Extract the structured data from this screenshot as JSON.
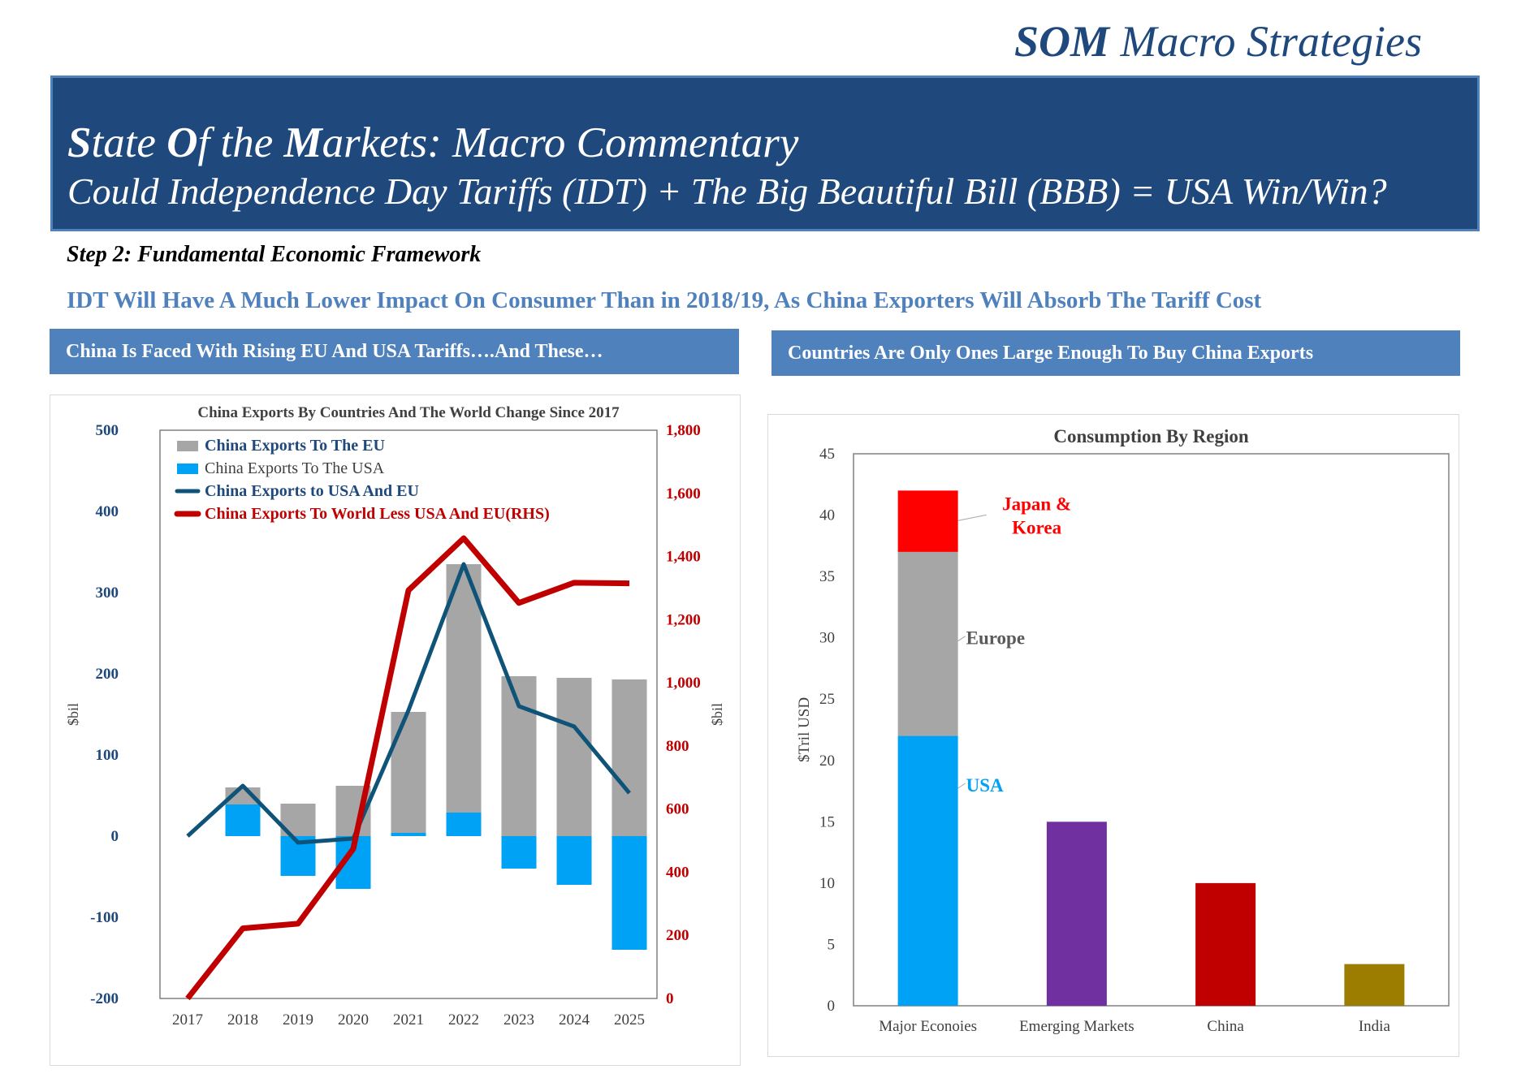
{
  "brand": {
    "bold": "SOM",
    "rest": " Macro Strategies"
  },
  "banner": {
    "title_parts": [
      {
        "t": "S",
        "b": true
      },
      {
        "t": "tate ",
        "b": false
      },
      {
        "t": "O",
        "b": true
      },
      {
        "t": "f the ",
        "b": false
      },
      {
        "t": "M",
        "b": true
      },
      {
        "t": "arkets: Macro Commentary",
        "b": false
      }
    ],
    "subtitle": "Could Independence Day Tariffs (IDT) + The Big Beautiful Bill (BBB) = USA Win/Win?"
  },
  "step": "Step 2: Fundamental Economic Framework",
  "subheadline": "IDT Will Have A Much Lower Impact On Consumer  Than in 2018/19, As China Exporters Will Absorb The Tariff Cost",
  "left_header": "China Is Faced With Rising EU And USA Tariffs….And These…",
  "right_header": "Countries Are Only Ones Large Enough To Buy China Exports",
  "colors": {
    "navy": "#1f497d",
    "blue": "#4f81bd",
    "gray_bar": "#a6a6a6",
    "usa_bar": "#00a2f5",
    "line_blue": "#0f5478",
    "line_red": "#c00000"
  },
  "chart_data": [
    {
      "type": "bar",
      "title": "China Exports By Countries And The World Change Since 2017",
      "ylabel": "$bil",
      "y2label": "$bil",
      "ylim": [
        -200,
        500
      ],
      "y2lim": [
        0,
        1800
      ],
      "yticks": [
        "500",
        "400",
        "300",
        "200",
        "100",
        "0",
        "-100",
        "-200"
      ],
      "y2ticks": [
        "1,800",
        "1,600",
        "1,400",
        "1,200",
        "1,000",
        "800",
        "600",
        "400",
        "200",
        "0"
      ],
      "categories": [
        "2017",
        "2018",
        "2019",
        "2020",
        "2021",
        "2022",
        "2023",
        "2024",
        "2025"
      ],
      "legend_placement": "top-left",
      "series": [
        {
          "name": "China Exports To The EU",
          "kind": "bar",
          "axis": "left",
          "color": "#a6a6a6",
          "values": [
            0,
            60,
            40,
            62,
            153,
            335,
            197,
            195,
            193
          ]
        },
        {
          "name": "China Exports To The USA",
          "kind": "bar",
          "axis": "left",
          "color": "#00a2f5",
          "values": [
            0,
            39,
            -49,
            -65,
            4,
            29,
            -40,
            -60,
            -140
          ]
        },
        {
          "name": "China Exports to USA And EU",
          "kind": "line",
          "axis": "left",
          "color": "#0f5478",
          "values": [
            0,
            62,
            -8,
            -3,
            155,
            335,
            160,
            135,
            53
          ]
        },
        {
          "name": "China Exports To World Less USA And EU(RHS)",
          "kind": "line",
          "axis": "right",
          "color": "#c00000",
          "values": [
            0,
            222,
            237,
            474,
            1293,
            1458,
            1253,
            1317,
            1315
          ]
        }
      ]
    },
    {
      "type": "bar",
      "title": "Consumption By Region",
      "ylabel": "$Tril USD",
      "ylim": [
        0,
        45
      ],
      "yticks": [
        "45",
        "40",
        "35",
        "30",
        "25",
        "20",
        "15",
        "10",
        "5",
        "0"
      ],
      "categories": [
        "Major Econoies",
        "Emerging Markets",
        "China",
        "India"
      ],
      "stack": [
        {
          "name": "USA",
          "value": 22,
          "color": "#00a2f5",
          "label_color": "#00a2f5"
        },
        {
          "name": "Europe",
          "value": 15,
          "color": "#a6a6a6",
          "label_color": "#595959"
        },
        {
          "name": "Japan & Korea",
          "value": 5,
          "color": "#ff0000",
          "label_color": "#ff0000"
        }
      ],
      "bars": [
        {
          "category": "Emerging Markets",
          "value": 15,
          "color": "#7030a0"
        },
        {
          "category": "China",
          "value": 10,
          "color": "#c00000"
        },
        {
          "category": "India",
          "value": 3.4,
          "color": "#9c7d00"
        }
      ],
      "grid": false
    }
  ]
}
